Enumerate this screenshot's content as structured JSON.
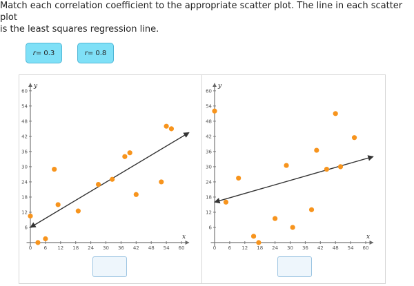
{
  "prompt": {
    "line1": "Match each correlation coefficient to the appropriate scatter plot. The line in each scatter plot",
    "line2": "is the least squares regression line."
  },
  "tiles": [
    {
      "var": "r",
      "eq": " = 0.3"
    },
    {
      "var": "r",
      "eq": " = 0.8"
    }
  ],
  "colors": {
    "point": "#f7941d",
    "line": "#333333",
    "tile": "#7fe0f7"
  },
  "chart_data": [
    {
      "type": "scatter",
      "xlabel": "x",
      "ylabel": "y",
      "xlim": [
        0,
        63
      ],
      "ylim": [
        0,
        63
      ],
      "xticks": [
        0,
        6,
        12,
        18,
        24,
        30,
        36,
        42,
        48,
        54,
        60
      ],
      "yticks": [
        6,
        12,
        18,
        24,
        30,
        36,
        42,
        48,
        54,
        60
      ],
      "points": [
        [
          0,
          10.5
        ],
        [
          3,
          0
        ],
        [
          6,
          1.5
        ],
        [
          9.5,
          29
        ],
        [
          11,
          15
        ],
        [
          19,
          12.5
        ],
        [
          27,
          23
        ],
        [
          32.5,
          25
        ],
        [
          37.5,
          34
        ],
        [
          39.5,
          35.5
        ],
        [
          42,
          19
        ],
        [
          52,
          24
        ],
        [
          54,
          46
        ],
        [
          56,
          45
        ]
      ],
      "regression": [
        [
          0,
          6
        ],
        [
          63,
          43.5
        ]
      ]
    },
    {
      "type": "scatter",
      "xlabel": "x",
      "ylabel": "y",
      "xlim": [
        0,
        63
      ],
      "ylim": [
        0,
        63
      ],
      "xticks": [
        0,
        6,
        12,
        18,
        24,
        30,
        36,
        42,
        48,
        54,
        60
      ],
      "yticks": [
        6,
        12,
        18,
        24,
        30,
        36,
        42,
        48,
        54,
        60
      ],
      "points": [
        [
          0,
          52
        ],
        [
          4.5,
          16
        ],
        [
          9.5,
          25.5
        ],
        [
          15.5,
          2.5
        ],
        [
          17.5,
          0
        ],
        [
          24,
          9.5
        ],
        [
          28.5,
          30.5
        ],
        [
          31,
          6
        ],
        [
          38.5,
          13
        ],
        [
          40.5,
          36.5
        ],
        [
          44.5,
          29
        ],
        [
          48,
          51
        ],
        [
          50,
          30
        ],
        [
          55.5,
          41.5
        ]
      ],
      "regression": [
        [
          0,
          16
        ],
        [
          63,
          34
        ]
      ]
    }
  ]
}
